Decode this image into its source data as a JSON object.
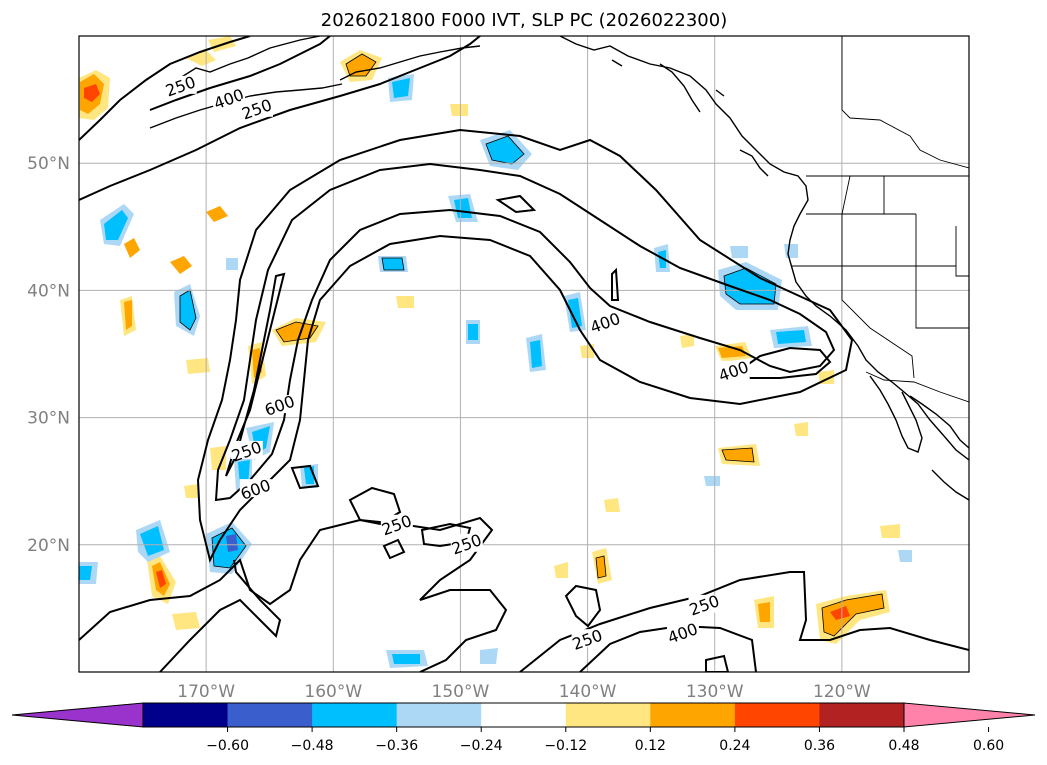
{
  "chart_data": {
    "type": "heatmap",
    "title": "2026021800 F000 IVT, SLP PC (2026022300)",
    "projection": "map",
    "lon_range": [
      -180,
      -110
    ],
    "lat_range": [
      10,
      60
    ],
    "grid": true,
    "lat_ticks": [
      {
        "value": 20,
        "label": "20°N"
      },
      {
        "value": 30,
        "label": "30°N"
      },
      {
        "value": 40,
        "label": "40°N"
      },
      {
        "value": 50,
        "label": "50°N"
      }
    ],
    "lon_ticks": [
      {
        "value": -170,
        "label": "170°W"
      },
      {
        "value": -160,
        "label": "160°W"
      },
      {
        "value": -150,
        "label": "150°W"
      },
      {
        "value": -140,
        "label": "140°W"
      },
      {
        "value": -130,
        "label": "130°W"
      },
      {
        "value": -120,
        "label": "120°W"
      }
    ],
    "colorbar": {
      "extend": "both",
      "ticks": [
        "−0.60",
        "−0.48",
        "−0.36",
        "−0.24",
        "−0.12",
        "0.12",
        "0.24",
        "0.36",
        "0.48",
        "0.60"
      ],
      "colors": [
        "#9933cc",
        "#00008b",
        "#3a5fcd",
        "#00bfff",
        "#add8f5",
        "#ffffff",
        "#ffe680",
        "#ffa500",
        "#ff4500",
        "#b22222",
        "#ff82ab"
      ]
    },
    "contours": {
      "levels": [
        250,
        400,
        600
      ],
      "labels": [
        {
          "text": "250",
          "lon": -172.0,
          "lat": 56.0
        },
        {
          "text": "400",
          "lon": -168.2,
          "lat": 55.0
        },
        {
          "text": "250",
          "lon": -166.0,
          "lat": 54.2
        },
        {
          "text": "400",
          "lon": -138.6,
          "lat": 37.4
        },
        {
          "text": "400",
          "lon": -128.5,
          "lat": 33.6
        },
        {
          "text": "600",
          "lon": -164.2,
          "lat": 30.9
        },
        {
          "text": "250",
          "lon": -166.8,
          "lat": 27.3
        },
        {
          "text": "600",
          "lon": -166.1,
          "lat": 24.3
        },
        {
          "text": "250",
          "lon": -155.0,
          "lat": 21.5
        },
        {
          "text": "250",
          "lon": -149.5,
          "lat": 20.0
        },
        {
          "text": "250",
          "lon": -130.8,
          "lat": 15.2
        },
        {
          "text": "400",
          "lon": -132.5,
          "lat": 13.0
        },
        {
          "text": "250",
          "lon": -140.0,
          "lat": 12.5
        }
      ]
    }
  }
}
